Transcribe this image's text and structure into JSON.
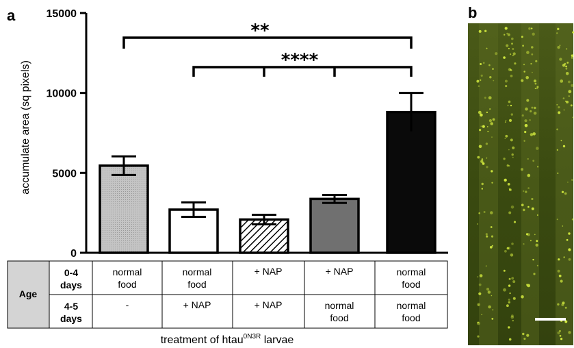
{
  "panels": {
    "a_label": "a",
    "b_label": "b"
  },
  "chart_data": {
    "type": "bar",
    "ylabel": "accumulate area (sq pixels)",
    "ylim": [
      0,
      15000
    ],
    "yticks": [
      "0",
      "5000",
      "10000",
      "15000"
    ],
    "ytick_values": [
      0,
      5000,
      10000,
      15000
    ],
    "categories": [
      "normal food / -",
      "normal food / + NAP",
      "+ NAP / + NAP",
      "+ NAP / normal food",
      "normal food / normal food"
    ],
    "values": [
      5450,
      2700,
      2080,
      3370,
      8800
    ],
    "errors": [
      580,
      450,
      300,
      250,
      1200
    ],
    "bar_fills": [
      "#c8c8c8",
      "#ffffff",
      "hatch",
      "#707070",
      "#0a0a0a"
    ],
    "significance": [
      {
        "label": "**",
        "from": 0,
        "to": [
          4
        ]
      },
      {
        "label": "****",
        "from": 4,
        "to": [
          1,
          2,
          3
        ]
      }
    ],
    "table": {
      "header": "Age",
      "rows": [
        {
          "label_top": "0-4",
          "label_bottom": "days",
          "cells": [
            [
              "normal",
              "food"
            ],
            [
              "normal",
              "food"
            ],
            [
              "+ NAP"
            ],
            [
              "+ NAP"
            ],
            [
              "normal",
              "food"
            ]
          ]
        },
        {
          "label_top": "4-5",
          "label_bottom": "days",
          "cells": [
            [
              "-"
            ],
            [
              "+ NAP"
            ],
            [
              "+ NAP"
            ],
            [
              "normal",
              "food"
            ],
            [
              "normal",
              "food"
            ]
          ]
        }
      ]
    },
    "xlabel_main": "treatment of htau",
    "xlabel_sup": "0N3R",
    "xlabel_end": " larvae"
  },
  "colors": {
    "micrograph_bg": "#3a4a12",
    "micrograph_signal": "#d8f040",
    "table_header_bg": "#d4d4d4"
  }
}
